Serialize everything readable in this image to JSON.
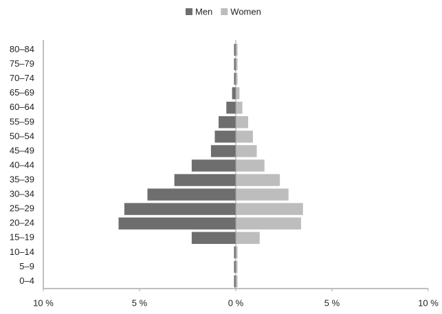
{
  "chart_data": {
    "type": "bar",
    "orientation": "horizontal",
    "categories": [
      "0–4",
      "5–9",
      "10–14",
      "15–19",
      "20–24",
      "25–29",
      "30–34",
      "35–39",
      "40–44",
      "45–49",
      "50–54",
      "55–59",
      "60–64",
      "65–69",
      "70–74",
      "75–79",
      "80–84"
    ],
    "series": [
      {
        "name": "Men",
        "color": "#6e6e6e",
        "values": [
          -0.1,
          -0.1,
          -0.1,
          -2.3,
          -6.1,
          -5.8,
          -4.6,
          -3.2,
          -2.3,
          -1.3,
          -1.1,
          -0.9,
          -0.5,
          -0.2,
          -0.1,
          -0.1,
          -0.1
        ]
      },
      {
        "name": "Women",
        "color": "#bdbdbd",
        "values": [
          0.1,
          0.1,
          0.1,
          1.25,
          3.4,
          3.5,
          2.75,
          2.3,
          1.5,
          1.1,
          0.9,
          0.65,
          0.35,
          0.2,
          0.1,
          0.1,
          0.1
        ]
      }
    ],
    "xlim": [
      -10,
      10
    ],
    "xticks": [
      {
        "value": -10,
        "label": "10 %"
      },
      {
        "value": -5,
        "label": "5 %"
      },
      {
        "value": 0,
        "label": "0 %"
      },
      {
        "value": 5,
        "label": "5 %"
      },
      {
        "value": 10,
        "label": "10 %"
      }
    ],
    "stacked": true,
    "legend": "top"
  }
}
